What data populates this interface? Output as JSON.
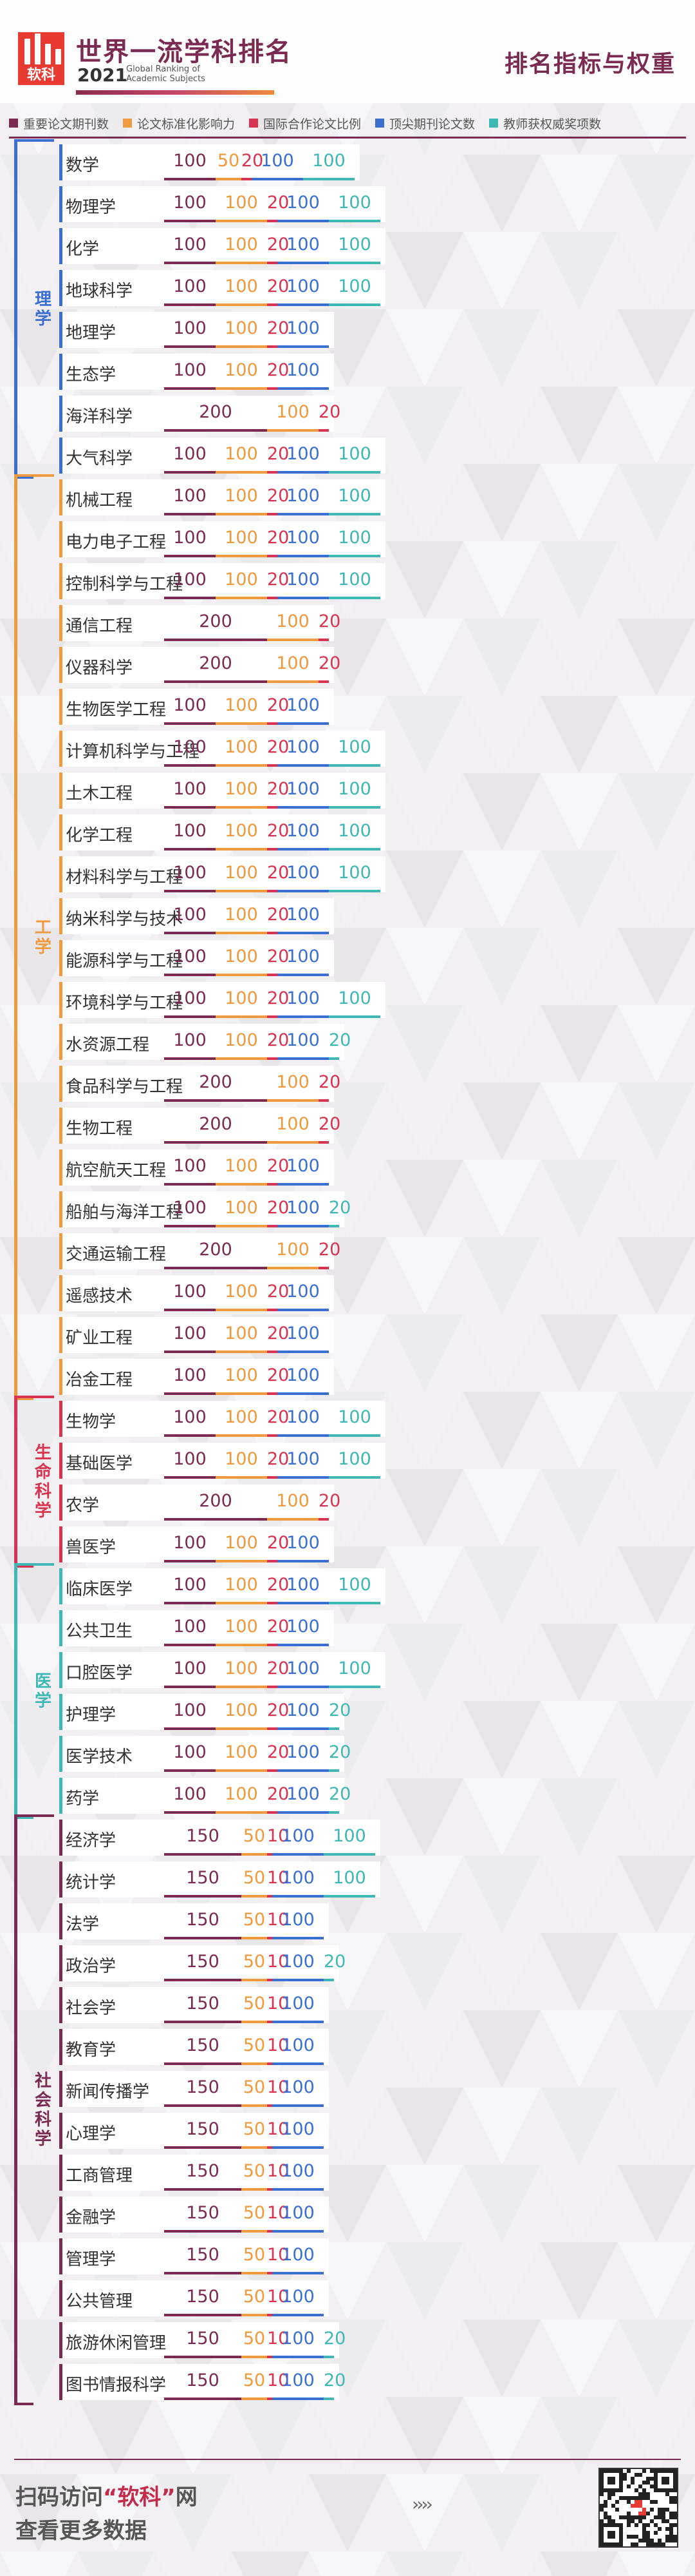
{
  "header": {
    "title": "世界一流学科排名",
    "year": "2021",
    "subtitle": "Global Ranking of Academic Subjects",
    "logo_text": "软科",
    "heading": "排名指标与权重"
  },
  "legend": [
    {
      "label": "重要论文期刊数",
      "color": "#7b2a52"
    },
    {
      "label": "论文标准化影响力",
      "color": "#ef9a3e"
    },
    {
      "label": "国际合作论文比例",
      "color": "#d8344f"
    },
    {
      "label": "顶尖期刊论文数",
      "color": "#3a6fd1"
    },
    {
      "label": "教师获权威奖项数",
      "color": "#3fb7b4"
    }
  ],
  "groups": [
    {
      "name": "理学",
      "color": "#3a6fd1"
    },
    {
      "name": "工学",
      "color": "#ef9a3e"
    },
    {
      "name": "生命科学",
      "color": "#d8344f"
    },
    {
      "name": "医学",
      "color": "#3fb7b4"
    },
    {
      "name": "社会科学",
      "color": "#7b2a52"
    }
  ],
  "rows": [
    {
      "g": 0,
      "name": "数学",
      "v": [
        100,
        50,
        20,
        100,
        100
      ]
    },
    {
      "g": 0,
      "name": "物理学",
      "v": [
        100,
        100,
        20,
        100,
        100
      ]
    },
    {
      "g": 0,
      "name": "化学",
      "v": [
        100,
        100,
        20,
        100,
        100
      ]
    },
    {
      "g": 0,
      "name": "地球科学",
      "v": [
        100,
        100,
        20,
        100,
        100
      ]
    },
    {
      "g": 0,
      "name": "地理学",
      "v": [
        100,
        100,
        20,
        100,
        0
      ]
    },
    {
      "g": 0,
      "name": "生态学",
      "v": [
        100,
        100,
        20,
        100,
        0
      ]
    },
    {
      "g": 0,
      "name": "海洋科学",
      "v": [
        200,
        100,
        20,
        0,
        0
      ]
    },
    {
      "g": 0,
      "name": "大气科学",
      "v": [
        100,
        100,
        20,
        100,
        100
      ]
    },
    {
      "g": 1,
      "name": "机械工程",
      "v": [
        100,
        100,
        20,
        100,
        100
      ]
    },
    {
      "g": 1,
      "name": "电力电子工程",
      "v": [
        100,
        100,
        20,
        100,
        100
      ]
    },
    {
      "g": 1,
      "name": "控制科学与工程",
      "v": [
        100,
        100,
        20,
        100,
        100
      ]
    },
    {
      "g": 1,
      "name": "通信工程",
      "v": [
        200,
        100,
        20,
        0,
        0
      ]
    },
    {
      "g": 1,
      "name": "仪器科学",
      "v": [
        200,
        100,
        20,
        0,
        0
      ]
    },
    {
      "g": 1,
      "name": "生物医学工程",
      "v": [
        100,
        100,
        20,
        100,
        0
      ]
    },
    {
      "g": 1,
      "name": "计算机科学与工程",
      "v": [
        100,
        100,
        20,
        100,
        100
      ]
    },
    {
      "g": 1,
      "name": "土木工程",
      "v": [
        100,
        100,
        20,
        100,
        100
      ]
    },
    {
      "g": 1,
      "name": "化学工程",
      "v": [
        100,
        100,
        20,
        100,
        100
      ]
    },
    {
      "g": 1,
      "name": "材料科学与工程",
      "v": [
        100,
        100,
        20,
        100,
        100
      ]
    },
    {
      "g": 1,
      "name": "纳米科学与技术",
      "v": [
        100,
        100,
        20,
        100,
        0
      ]
    },
    {
      "g": 1,
      "name": "能源科学与工程",
      "v": [
        100,
        100,
        20,
        100,
        0
      ]
    },
    {
      "g": 1,
      "name": "环境科学与工程",
      "v": [
        100,
        100,
        20,
        100,
        100
      ]
    },
    {
      "g": 1,
      "name": "水资源工程",
      "v": [
        100,
        100,
        20,
        100,
        20
      ]
    },
    {
      "g": 1,
      "name": "食品科学与工程",
      "v": [
        200,
        100,
        20,
        0,
        0
      ]
    },
    {
      "g": 1,
      "name": "生物工程",
      "v": [
        200,
        100,
        20,
        0,
        0
      ]
    },
    {
      "g": 1,
      "name": "航空航天工程",
      "v": [
        100,
        100,
        20,
        100,
        0
      ]
    },
    {
      "g": 1,
      "name": "船舶与海洋工程",
      "v": [
        100,
        100,
        20,
        100,
        20
      ]
    },
    {
      "g": 1,
      "name": "交通运输工程",
      "v": [
        200,
        100,
        20,
        0,
        0
      ]
    },
    {
      "g": 1,
      "name": "遥感技术",
      "v": [
        100,
        100,
        20,
        100,
        0
      ]
    },
    {
      "g": 1,
      "name": "矿业工程",
      "v": [
        100,
        100,
        20,
        100,
        0
      ]
    },
    {
      "g": 1,
      "name": "冶金工程",
      "v": [
        100,
        100,
        20,
        100,
        0
      ]
    },
    {
      "g": 2,
      "name": "生物学",
      "v": [
        100,
        100,
        20,
        100,
        100
      ]
    },
    {
      "g": 2,
      "name": "基础医学",
      "v": [
        100,
        100,
        20,
        100,
        100
      ]
    },
    {
      "g": 2,
      "name": "农学",
      "v": [
        200,
        100,
        20,
        0,
        0
      ]
    },
    {
      "g": 2,
      "name": "兽医学",
      "v": [
        100,
        100,
        20,
        100,
        0
      ]
    },
    {
      "g": 3,
      "name": "临床医学",
      "v": [
        100,
        100,
        20,
        100,
        100
      ]
    },
    {
      "g": 3,
      "name": "公共卫生",
      "v": [
        100,
        100,
        20,
        100,
        0
      ]
    },
    {
      "g": 3,
      "name": "口腔医学",
      "v": [
        100,
        100,
        20,
        100,
        100
      ]
    },
    {
      "g": 3,
      "name": "护理学",
      "v": [
        100,
        100,
        20,
        100,
        20
      ]
    },
    {
      "g": 3,
      "name": "医学技术",
      "v": [
        100,
        100,
        20,
        100,
        20
      ]
    },
    {
      "g": 3,
      "name": "药学",
      "v": [
        100,
        100,
        20,
        100,
        20
      ]
    },
    {
      "g": 4,
      "name": "经济学",
      "v": [
        150,
        50,
        10,
        100,
        100
      ]
    },
    {
      "g": 4,
      "name": "统计学",
      "v": [
        150,
        50,
        10,
        100,
        100
      ]
    },
    {
      "g": 4,
      "name": "法学",
      "v": [
        150,
        50,
        10,
        100,
        0
      ]
    },
    {
      "g": 4,
      "name": "政治学",
      "v": [
        150,
        50,
        10,
        100,
        20
      ]
    },
    {
      "g": 4,
      "name": "社会学",
      "v": [
        150,
        50,
        10,
        100,
        0
      ]
    },
    {
      "g": 4,
      "name": "教育学",
      "v": [
        150,
        50,
        10,
        100,
        0
      ]
    },
    {
      "g": 4,
      "name": "新闻传播学",
      "v": [
        150,
        50,
        10,
        100,
        0
      ]
    },
    {
      "g": 4,
      "name": "心理学",
      "v": [
        150,
        50,
        10,
        100,
        0
      ]
    },
    {
      "g": 4,
      "name": "工商管理",
      "v": [
        150,
        50,
        10,
        100,
        0
      ]
    },
    {
      "g": 4,
      "name": "金融学",
      "v": [
        150,
        50,
        10,
        100,
        0
      ]
    },
    {
      "g": 4,
      "name": "管理学",
      "v": [
        150,
        50,
        10,
        100,
        0
      ]
    },
    {
      "g": 4,
      "name": "公共管理",
      "v": [
        150,
        50,
        10,
        100,
        0
      ]
    },
    {
      "g": 4,
      "name": "旅游休闲管理",
      "v": [
        150,
        50,
        10,
        100,
        20
      ]
    },
    {
      "g": 4,
      "name": "图书情报科学",
      "v": [
        150,
        50,
        10,
        100,
        20
      ]
    }
  ],
  "footer": {
    "line1_a": "扫码访问",
    "line1_b": "“软科”",
    "line1_c": "网",
    "line2": "查看更多数据",
    "chevrons": "››››"
  }
}
